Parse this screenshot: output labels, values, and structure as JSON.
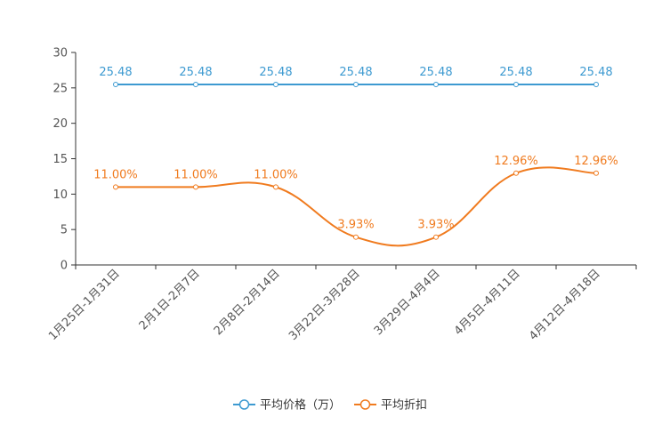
{
  "chart_data": {
    "type": "line",
    "title": "",
    "xlabel": "",
    "ylabel": "",
    "ylim": [
      0,
      30
    ],
    "yticks": [
      0,
      5,
      10,
      15,
      20,
      25,
      30
    ],
    "grid": false,
    "legend_position": "bottom-center",
    "categories": [
      "1月25日-1月31日",
      "2月1日-2月7日",
      "2月8日-2月14日",
      "3月22日-3月28日",
      "3月29日-4月4日",
      "4月5日-4月11日",
      "4月12日-4月18日"
    ],
    "series": [
      {
        "name": "平均价格（万）",
        "color": "#3d9ad1",
        "smooth": false,
        "values": [
          25.48,
          25.48,
          25.48,
          25.48,
          25.48,
          25.48,
          25.48
        ],
        "labels": [
          "25.48",
          "25.48",
          "25.48",
          "25.48",
          "25.48",
          "25.48",
          "25.48"
        ]
      },
      {
        "name": "平均折扣",
        "color": "#f07b1f",
        "smooth": true,
        "values": [
          11.0,
          11.0,
          11.0,
          3.93,
          3.93,
          12.96,
          12.96
        ],
        "labels": [
          "11.00%",
          "11.00%",
          "11.00%",
          "3.93%",
          "3.93%",
          "12.96%",
          "12.96%"
        ]
      }
    ]
  }
}
